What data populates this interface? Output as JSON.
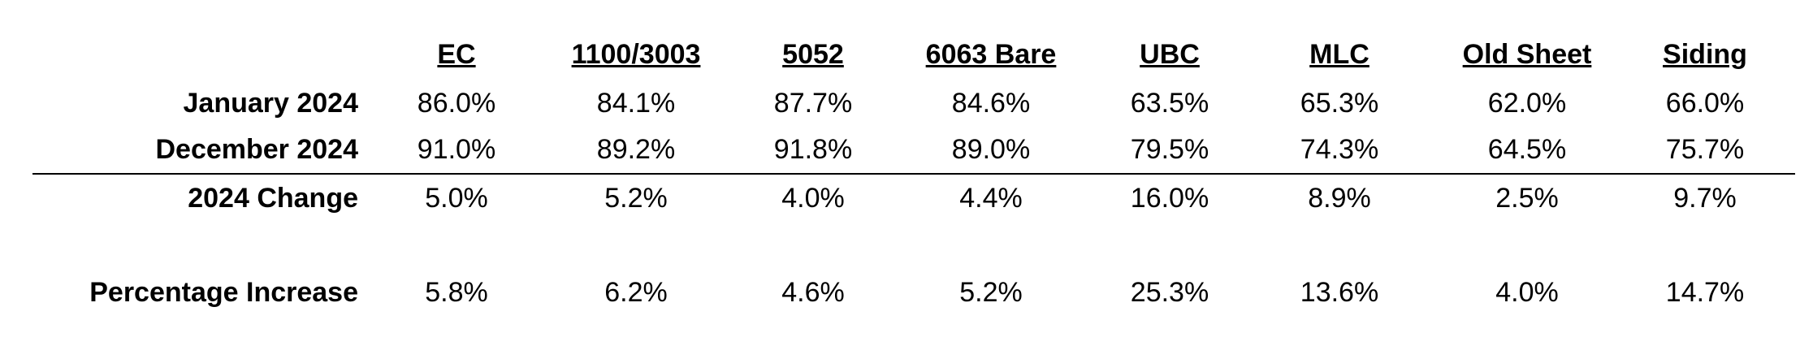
{
  "table": {
    "columns": [
      "EC",
      "1100/3003",
      "5052",
      "6063 Bare",
      "UBC",
      "MLC",
      "Old Sheet",
      "Siding"
    ],
    "rows": [
      {
        "label": "January 2024",
        "cells": [
          "86.0%",
          "84.1%",
          "87.7%",
          "84.6%",
          "63.5%",
          "65.3%",
          "62.0%",
          "66.0%"
        ]
      },
      {
        "label": "December 2024",
        "cells": [
          "91.0%",
          "89.2%",
          "91.8%",
          "89.0%",
          "79.5%",
          "74.3%",
          "64.5%",
          "75.7%"
        ]
      },
      {
        "label": "2024 Change",
        "cells": [
          "5.0%",
          "5.2%",
          "4.0%",
          "4.4%",
          "16.0%",
          "8.9%",
          "2.5%",
          "9.7%"
        ]
      },
      {
        "label": "Percentage Increase",
        "cells": [
          "5.8%",
          "6.2%",
          "4.6%",
          "5.2%",
          "25.3%",
          "13.6%",
          "4.0%",
          "14.7%"
        ]
      }
    ]
  }
}
